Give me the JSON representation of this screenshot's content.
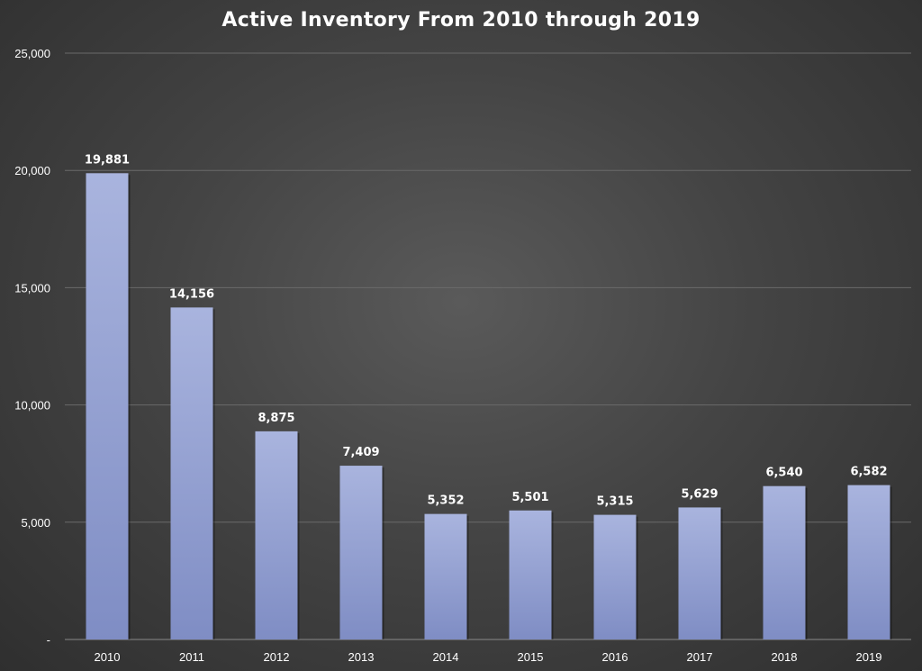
{
  "chart_data": {
    "type": "bar",
    "title": "Active Inventory From 2010 through 2019",
    "xlabel": "",
    "ylabel": "",
    "categories": [
      "2010",
      "2011",
      "2012",
      "2013",
      "2014",
      "2015",
      "2016",
      "2017",
      "2018",
      "2019"
    ],
    "values": [
      19881,
      14156,
      8875,
      7409,
      5352,
      5501,
      5315,
      5629,
      6540,
      6582
    ],
    "data_labels": [
      "19,881",
      "14,156",
      "8,875",
      "7,409",
      "5,352",
      "5,501",
      "5,315",
      "5,629",
      "6,540",
      "6,582"
    ],
    "ylim": [
      0,
      25000
    ],
    "y_ticks": [
      0,
      5000,
      10000,
      15000,
      20000,
      25000
    ],
    "y_tick_labels": [
      "-",
      "5,000",
      "10,000",
      "15,000",
      "20,000",
      "25,000"
    ],
    "grid": true,
    "legend": "none",
    "colors": {
      "bar_top": "#a9b4de",
      "bar_bottom": "#7f8dc4",
      "gridline": "#6a6a6a",
      "text": "#ffffff"
    }
  }
}
